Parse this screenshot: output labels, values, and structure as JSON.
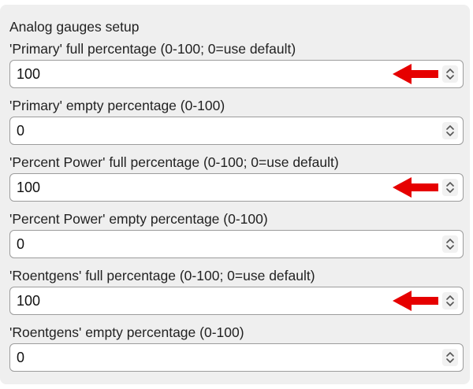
{
  "section_title": "Analog gauges setup",
  "fields": [
    {
      "label": "'Primary' full percentage (0-100; 0=use default)",
      "value": "100",
      "annotated": true
    },
    {
      "label": "'Primary' empty percentage (0-100)",
      "value": "0",
      "annotated": false
    },
    {
      "label": "'Percent Power' full percentage (0-100; 0=use default)",
      "value": "100",
      "annotated": true
    },
    {
      "label": "'Percent Power' empty percentage (0-100)",
      "value": "0",
      "annotated": false
    },
    {
      "label": "'Roentgens' full percentage (0-100; 0=use default)",
      "value": "100",
      "annotated": true
    },
    {
      "label": "'Roentgens' empty percentage (0-100)",
      "value": "0",
      "annotated": false
    }
  ],
  "icons": {
    "stepper": "up-down-chevron-icon",
    "annotation": "red-arrow-pointing-left"
  },
  "colors": {
    "annotation_arrow": "#e60000",
    "panel_background": "#efefef"
  }
}
